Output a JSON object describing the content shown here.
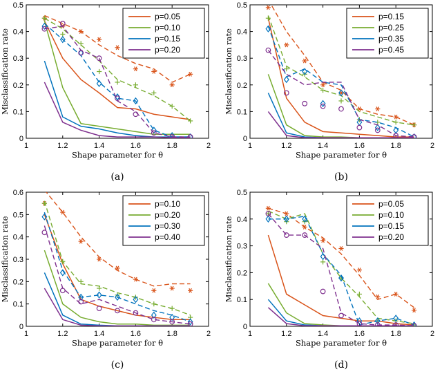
{
  "chart_data": [
    {
      "type": "line",
      "caption": "(a)",
      "xlabel": "Shape parameter for θ",
      "ylabel": "Misclassification rate",
      "xlim": [
        1,
        2
      ],
      "ylim": [
        0,
        0.5
      ],
      "xticks": [
        1,
        1.2,
        1.4,
        1.6,
        1.8,
        2
      ],
      "yticks": [
        0,
        0.1,
        0.2,
        0.3,
        0.4,
        0.5
      ],
      "legend_position": "top-right",
      "x": [
        1.1,
        1.2,
        1.3,
        1.4,
        1.5,
        1.6,
        1.7,
        1.8,
        1.9
      ],
      "series": [
        {
          "name": "p=0.05",
          "color": "#d95319",
          "solid": [
            0.44,
            0.3,
            0.22,
            0.17,
            0.115,
            0.11,
            0.09,
            0.08,
            0.07
          ],
          "dashed": [
            0.46,
            0.43,
            0.4,
            0.35,
            0.31,
            0.28,
            0.26,
            0.21,
            0.24
          ],
          "markers": [
            0.45,
            0.42,
            0.4,
            0.37,
            0.34,
            0.26,
            0.25,
            0.2,
            0.24
          ],
          "marker": "asterisk"
        },
        {
          "name": "p=0.10",
          "color": "#77ac30",
          "solid": [
            0.44,
            0.19,
            0.055,
            0.045,
            0.035,
            0.025,
            0.015,
            0.015,
            0.015
          ],
          "dashed": [
            0.45,
            0.41,
            0.35,
            0.29,
            0.22,
            0.19,
            0.16,
            0.12,
            0.065
          ],
          "markers": [
            0.45,
            0.39,
            0.355,
            0.25,
            0.21,
            0.2,
            0.17,
            0.12,
            0.065
          ],
          "marker": "plus"
        },
        {
          "name": "p=0.15",
          "color": "#0072bd",
          "solid": [
            0.29,
            0.08,
            0.045,
            0.035,
            0.02,
            0.01,
            0.005,
            0.005,
            0.005
          ],
          "dashed": [
            0.43,
            0.37,
            0.31,
            0.21,
            0.15,
            0.14,
            0.03,
            0.005,
            0.005
          ],
          "markers": [
            0.42,
            0.37,
            0.32,
            0.205,
            0.155,
            0.14,
            0.03,
            0.01,
            0.005
          ],
          "marker": "diamond"
        },
        {
          "name": "p=0.20",
          "color": "#7e2f8e",
          "solid": [
            0.21,
            0.06,
            0.03,
            0.01,
            0.005,
            0.005,
            0.005,
            0.002,
            0.002
          ],
          "dashed": [
            0.41,
            0.42,
            0.33,
            0.3,
            0.14,
            0.1,
            0.02,
            0.005,
            0.005
          ],
          "markers": [
            0.41,
            0.43,
            0.32,
            0.3,
            0.15,
            0.09,
            0.02,
            0.005,
            0.005
          ],
          "marker": "circle"
        }
      ]
    },
    {
      "type": "line",
      "caption": "(b)",
      "xlabel": "Shape parameter for θ",
      "ylabel": "Misclassification rate",
      "xlim": [
        1,
        2
      ],
      "ylim": [
        0,
        0.5
      ],
      "xticks": [
        1,
        1.2,
        1.4,
        1.6,
        1.8,
        2
      ],
      "yticks": [
        0,
        0.1,
        0.2,
        0.3,
        0.4,
        0.5
      ],
      "legend_position": "top-right",
      "x": [
        1.1,
        1.2,
        1.3,
        1.4,
        1.5,
        1.6,
        1.7,
        1.8,
        1.9
      ],
      "series": [
        {
          "name": "p=0.15",
          "color": "#d95319",
          "solid": [
            0.45,
            0.15,
            0.06,
            0.025,
            0.02,
            0.015,
            0.01,
            0.005,
            0.005
          ],
          "dashed": [
            0.52,
            0.4,
            0.31,
            0.21,
            0.18,
            0.11,
            0.09,
            0.08,
            0.05
          ],
          "markers": [
            0.49,
            0.35,
            0.29,
            0.2,
            0.17,
            0.11,
            0.11,
            0.08,
            0.05
          ],
          "marker": "asterisk"
        },
        {
          "name": "p=0.25",
          "color": "#77ac30",
          "solid": [
            0.24,
            0.05,
            0.01,
            0.005,
            0.005,
            0.002,
            0.002,
            0.002,
            0.002
          ],
          "dashed": [
            0.46,
            0.27,
            0.23,
            0.18,
            0.16,
            0.1,
            0.08,
            0.06,
            0.05
          ],
          "markers": [
            0.45,
            0.26,
            0.24,
            0.18,
            0.14,
            0.07,
            0.06,
            0.06,
            0.05
          ],
          "marker": "plus"
        },
        {
          "name": "p=0.35",
          "color": "#0072bd",
          "solid": [
            0.17,
            0.02,
            0.005,
            0.002,
            0.002,
            0.002,
            0.002,
            0.002,
            0.002
          ],
          "dashed": [
            0.42,
            0.23,
            0.26,
            0.21,
            0.2,
            0.07,
            0.06,
            0.04,
            0.005
          ],
          "markers": [
            0.41,
            0.22,
            0.25,
            0.13,
            0.17,
            0.06,
            0.04,
            0.03,
            0.005
          ],
          "marker": "diamond"
        },
        {
          "name": "p=0.45",
          "color": "#7e2f8e",
          "solid": [
            0.1,
            0.01,
            0.002,
            0.002,
            0.002,
            0.002,
            0.002,
            0.002,
            0.002
          ],
          "dashed": [
            0.33,
            0.24,
            0.2,
            0.21,
            0.21,
            0.07,
            0.05,
            0.01,
            0.005
          ],
          "markers": [
            0.33,
            0.17,
            0.13,
            0.12,
            0.11,
            0.04,
            0.03,
            0.01,
            0.005
          ],
          "marker": "circle"
        }
      ]
    },
    {
      "type": "line",
      "caption": "(c)",
      "xlabel": "Shape parameter for θ",
      "ylabel": "Misclassification rate",
      "xlim": [
        1,
        2
      ],
      "ylim": [
        0,
        0.6
      ],
      "xticks": [
        1,
        1.2,
        1.4,
        1.6,
        1.8,
        2
      ],
      "yticks": [
        0,
        0.1,
        0.2,
        0.3,
        0.4,
        0.5,
        0.6
      ],
      "legend_position": "top-right",
      "x": [
        1.1,
        1.2,
        1.3,
        1.4,
        1.5,
        1.6,
        1.7,
        1.8,
        1.9
      ],
      "series": [
        {
          "name": "p=0.10",
          "color": "#d95319",
          "solid": [
            0.5,
            0.28,
            0.12,
            0.09,
            0.07,
            0.05,
            0.04,
            0.03,
            0.03
          ],
          "dashed": [
            0.61,
            0.51,
            0.4,
            0.31,
            0.25,
            0.21,
            0.18,
            0.19,
            0.19
          ],
          "markers": [
            0.55,
            0.51,
            0.38,
            0.3,
            0.26,
            0.21,
            0.16,
            0.17,
            0.16
          ],
          "marker": "asterisk"
        },
        {
          "name": "p=0.20",
          "color": "#77ac30",
          "solid": [
            0.34,
            0.1,
            0.04,
            0.02,
            0.01,
            0.01,
            0.005,
            0.005,
            0.005
          ],
          "dashed": [
            0.56,
            0.29,
            0.19,
            0.18,
            0.15,
            0.13,
            0.1,
            0.08,
            0.05
          ],
          "markers": [
            0.55,
            0.29,
            0.2,
            0.17,
            0.14,
            0.13,
            0.1,
            0.08,
            0.04
          ],
          "marker": "plus"
        },
        {
          "name": "p=0.30",
          "color": "#0072bd",
          "solid": [
            0.24,
            0.05,
            0.01,
            0.005,
            0.002,
            0.002,
            0.002,
            0.002,
            0.002
          ],
          "dashed": [
            0.51,
            0.25,
            0.13,
            0.14,
            0.13,
            0.1,
            0.07,
            0.05,
            0.02
          ],
          "markers": [
            0.49,
            0.24,
            0.13,
            0.14,
            0.13,
            0.12,
            0.05,
            0.04,
            0.02
          ],
          "marker": "diamond"
        },
        {
          "name": "p=0.40",
          "color": "#7e2f8e",
          "solid": [
            0.17,
            0.03,
            0.005,
            0.002,
            0.002,
            0.002,
            0.002,
            0.002,
            0.002
          ],
          "dashed": [
            0.45,
            0.17,
            0.1,
            0.12,
            0.09,
            0.06,
            0.03,
            0.02,
            0.01
          ],
          "markers": [
            0.42,
            0.16,
            0.11,
            0.08,
            0.07,
            0.06,
            0.03,
            0.02,
            0.01
          ],
          "marker": "circle"
        }
      ]
    },
    {
      "type": "line",
      "caption": "(d)",
      "xlabel": "Shape parameter for θ",
      "ylabel": "Misclassification rate",
      "xlim": [
        1,
        2
      ],
      "ylim": [
        0,
        0.5
      ],
      "xticks": [
        1,
        1.2,
        1.4,
        1.6,
        1.8,
        2
      ],
      "yticks": [
        0,
        0.1,
        0.2,
        0.3,
        0.4,
        0.5
      ],
      "legend_position": "top-right",
      "x": [
        1.1,
        1.2,
        1.3,
        1.4,
        1.5,
        1.6,
        1.7,
        1.8,
        1.9
      ],
      "series": [
        {
          "name": "p=0.05",
          "color": "#d95319",
          "solid": [
            0.34,
            0.12,
            0.08,
            0.04,
            0.03,
            0.02,
            0.02,
            0.01,
            0.005
          ],
          "dashed": [
            0.44,
            0.42,
            0.37,
            0.33,
            0.27,
            0.19,
            0.1,
            0.12,
            0.07
          ],
          "markers": [
            0.44,
            0.42,
            0.37,
            0.32,
            0.29,
            0.21,
            0.11,
            0.12,
            0.06
          ],
          "marker": "asterisk"
        },
        {
          "name": "p=0.10",
          "color": "#77ac30",
          "solid": [
            0.16,
            0.05,
            0.01,
            0.005,
            0.002,
            0.002,
            0.002,
            0.002,
            0.002
          ],
          "dashed": [
            0.43,
            0.4,
            0.42,
            0.27,
            0.18,
            0.11,
            0.03,
            0.02,
            0.01
          ],
          "markers": [
            0.42,
            0.39,
            0.39,
            0.24,
            0.18,
            0.12,
            0.02,
            0.02,
            0.005
          ],
          "marker": "plus"
        },
        {
          "name": "p=0.15",
          "color": "#0072bd",
          "solid": [
            0.1,
            0.02,
            0.005,
            0.002,
            0.002,
            0.002,
            0.002,
            0.002,
            0.002
          ],
          "dashed": [
            0.4,
            0.4,
            0.41,
            0.27,
            0.19,
            0.005,
            0.02,
            0.03,
            0.005
          ],
          "markers": [
            0.4,
            0.4,
            0.4,
            0.26,
            0.18,
            0.02,
            0.02,
            0.03,
            0.005
          ],
          "marker": "diamond"
        },
        {
          "name": "p=0.20",
          "color": "#7e2f8e",
          "solid": [
            0.07,
            0.01,
            0.002,
            0.002,
            0.002,
            0.002,
            0.002,
            0.002,
            0.002
          ],
          "dashed": [
            0.42,
            0.34,
            0.34,
            0.29,
            0.05,
            0.01,
            0.005,
            0.005,
            0.002
          ],
          "markers": [
            0.42,
            0.34,
            0.34,
            0.13,
            0.04,
            0.01,
            0.005,
            0.005,
            0.002
          ],
          "marker": "circle"
        }
      ]
    }
  ]
}
